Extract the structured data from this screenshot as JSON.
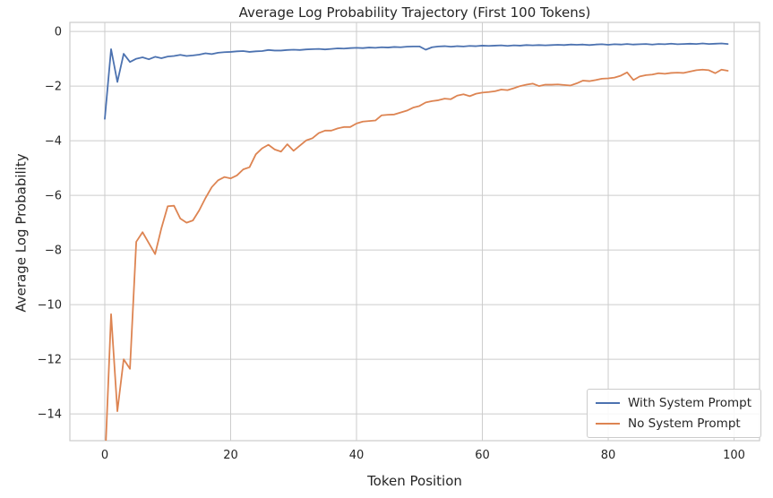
{
  "chart_data": {
    "type": "line",
    "title": "Average Log Probability Trajectory (First 100 Tokens)",
    "xlabel": "Token Position",
    "ylabel": "Average Log Probability",
    "x_description": "token index 0 through 99, step 1",
    "xlim": [
      -5.55,
      104.05
    ],
    "ylim": [
      -14.98,
      0.33
    ],
    "xticks": [
      0,
      20,
      40,
      60,
      80,
      100
    ],
    "xtick_labels": [
      "0",
      "20",
      "40",
      "60",
      "80",
      "100"
    ],
    "yticks": [
      0,
      -2,
      -4,
      -6,
      -8,
      -10,
      -12,
      -14
    ],
    "ytick_labels": [
      "0",
      "−2",
      "−4",
      "−6",
      "−8",
      "−10",
      "−12",
      "−14"
    ],
    "grid": true,
    "grid_color": "#cccccc",
    "background_color": "#ffffff",
    "text_color": "#262626",
    "legend_position": "lower right",
    "note": "First value of 'No System Prompt' extends below the bottom axis limit and is clipped; value estimated.",
    "series": [
      {
        "name": "With System Prompt",
        "color": "#4c72b0",
        "values": [
          -3.2,
          -0.65,
          -1.85,
          -0.82,
          -1.12,
          -1.0,
          -0.95,
          -1.02,
          -0.93,
          -0.98,
          -0.92,
          -0.9,
          -0.86,
          -0.9,
          -0.88,
          -0.85,
          -0.8,
          -0.83,
          -0.78,
          -0.76,
          -0.75,
          -0.73,
          -0.72,
          -0.75,
          -0.73,
          -0.72,
          -0.68,
          -0.7,
          -0.7,
          -0.68,
          -0.67,
          -0.68,
          -0.66,
          -0.65,
          -0.64,
          -0.66,
          -0.64,
          -0.62,
          -0.63,
          -0.61,
          -0.6,
          -0.61,
          -0.59,
          -0.6,
          -0.58,
          -0.59,
          -0.57,
          -0.58,
          -0.56,
          -0.55,
          -0.55,
          -0.67,
          -0.58,
          -0.55,
          -0.54,
          -0.56,
          -0.54,
          -0.55,
          -0.53,
          -0.54,
          -0.52,
          -0.53,
          -0.52,
          -0.51,
          -0.53,
          -0.51,
          -0.52,
          -0.5,
          -0.51,
          -0.5,
          -0.51,
          -0.5,
          -0.49,
          -0.5,
          -0.48,
          -0.49,
          -0.48,
          -0.5,
          -0.48,
          -0.47,
          -0.49,
          -0.47,
          -0.48,
          -0.46,
          -0.48,
          -0.47,
          -0.46,
          -0.48,
          -0.46,
          -0.47,
          -0.45,
          -0.47,
          -0.46,
          -0.45,
          -0.46,
          -0.44,
          -0.46,
          -0.45,
          -0.44,
          -0.46
        ]
      },
      {
        "name": "No System Prompt",
        "color": "#dd8452",
        "values": [
          -16.0,
          -10.35,
          -13.9,
          -12.0,
          -12.35,
          -7.7,
          -7.35,
          -7.75,
          -8.15,
          -7.2,
          -6.4,
          -6.38,
          -6.85,
          -7.0,
          -6.92,
          -6.55,
          -6.1,
          -5.7,
          -5.45,
          -5.33,
          -5.38,
          -5.27,
          -5.05,
          -4.97,
          -4.5,
          -4.28,
          -4.15,
          -4.32,
          -4.4,
          -4.13,
          -4.37,
          -4.18,
          -3.99,
          -3.91,
          -3.72,
          -3.63,
          -3.63,
          -3.55,
          -3.5,
          -3.5,
          -3.37,
          -3.3,
          -3.28,
          -3.26,
          -3.07,
          -3.05,
          -3.04,
          -2.97,
          -2.9,
          -2.79,
          -2.73,
          -2.6,
          -2.55,
          -2.52,
          -2.46,
          -2.48,
          -2.35,
          -2.3,
          -2.37,
          -2.28,
          -2.24,
          -2.22,
          -2.19,
          -2.13,
          -2.15,
          -2.08,
          -2.0,
          -1.95,
          -1.91,
          -2.0,
          -1.95,
          -1.95,
          -1.94,
          -1.96,
          -1.98,
          -1.9,
          -1.8,
          -1.82,
          -1.78,
          -1.73,
          -1.72,
          -1.69,
          -1.62,
          -1.5,
          -1.78,
          -1.65,
          -1.6,
          -1.58,
          -1.53,
          -1.55,
          -1.52,
          -1.51,
          -1.52,
          -1.47,
          -1.42,
          -1.4,
          -1.42,
          -1.53,
          -1.4,
          -1.44
        ]
      }
    ]
  },
  "legend": {
    "items": [
      {
        "label": "With System Prompt",
        "color": "#4c72b0"
      },
      {
        "label": "No System Prompt",
        "color": "#dd8452"
      }
    ]
  }
}
